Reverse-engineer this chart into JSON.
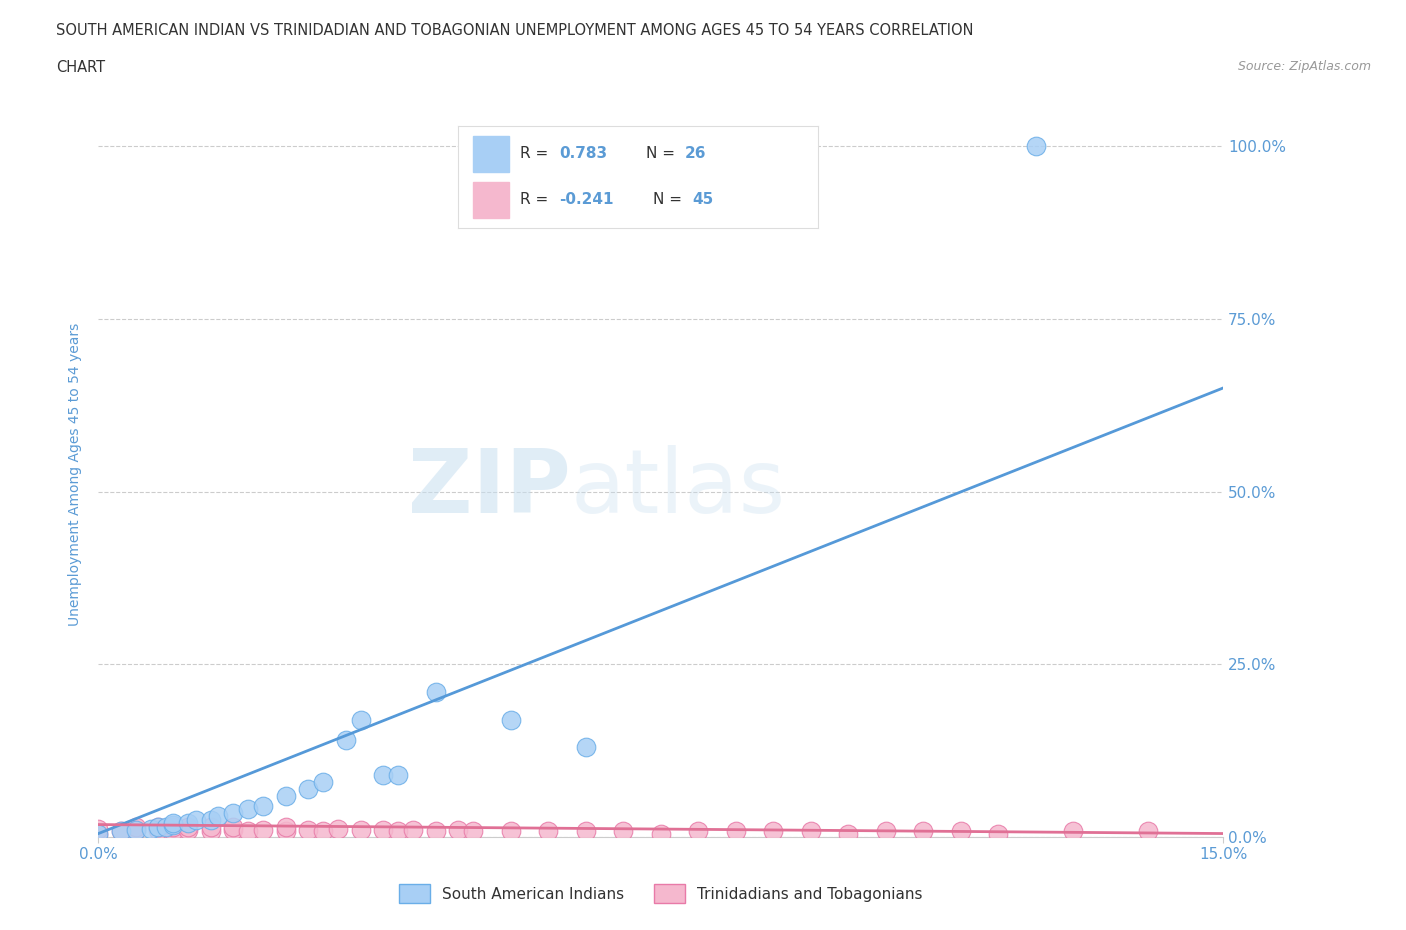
{
  "title_line1": "SOUTH AMERICAN INDIAN VS TRINIDADIAN AND TOBAGONIAN UNEMPLOYMENT AMONG AGES 45 TO 54 YEARS CORRELATION",
  "title_line2": "CHART",
  "source": "Source: ZipAtlas.com",
  "ylabel": "Unemployment Among Ages 45 to 54 years",
  "xlim": [
    0.0,
    0.15
  ],
  "ylim": [
    0.0,
    1.05
  ],
  "yticks": [
    0.0,
    0.25,
    0.5,
    0.75,
    1.0
  ],
  "ytick_labels": [
    "0.0%",
    "25.0%",
    "50.0%",
    "75.0%",
    "100.0%"
  ],
  "xticks": [
    0.0,
    0.15
  ],
  "xtick_labels": [
    "0.0%",
    "15.0%"
  ],
  "legend_blue_r": "0.783",
  "legend_blue_n": "26",
  "legend_pink_r": "-0.241",
  "legend_pink_n": "45",
  "blue_label": "South American Indians",
  "pink_label": "Trinidadians and Tobagonians",
  "blue_color": "#a8cff5",
  "pink_color": "#f5b8ce",
  "blue_edge_color": "#6aaee8",
  "pink_edge_color": "#e87aa8",
  "blue_line_color": "#5599d8",
  "pink_line_color": "#e07095",
  "watermark_zip": "ZIP",
  "watermark_atlas": "atlas",
  "blue_scatter_x": [
    0.0,
    0.003,
    0.005,
    0.007,
    0.008,
    0.009,
    0.01,
    0.01,
    0.012,
    0.013,
    0.015,
    0.016,
    0.018,
    0.02,
    0.022,
    0.025,
    0.028,
    0.03,
    0.033,
    0.035,
    0.038,
    0.04,
    0.045,
    0.055,
    0.065,
    0.125
  ],
  "blue_scatter_y": [
    0.005,
    0.008,
    0.01,
    0.012,
    0.015,
    0.015,
    0.018,
    0.02,
    0.02,
    0.025,
    0.025,
    0.03,
    0.035,
    0.04,
    0.045,
    0.06,
    0.07,
    0.08,
    0.14,
    0.17,
    0.09,
    0.09,
    0.21,
    0.17,
    0.13,
    1.0
  ],
  "pink_scatter_x": [
    0.0,
    0.0,
    0.003,
    0.005,
    0.005,
    0.008,
    0.008,
    0.01,
    0.01,
    0.012,
    0.012,
    0.015,
    0.015,
    0.018,
    0.018,
    0.02,
    0.022,
    0.025,
    0.025,
    0.028,
    0.03,
    0.032,
    0.035,
    0.038,
    0.04,
    0.042,
    0.045,
    0.048,
    0.05,
    0.055,
    0.06,
    0.065,
    0.07,
    0.075,
    0.08,
    0.085,
    0.09,
    0.095,
    0.1,
    0.105,
    0.11,
    0.115,
    0.12,
    0.13,
    0.14
  ],
  "pink_scatter_y": [
    0.005,
    0.012,
    0.008,
    0.01,
    0.015,
    0.01,
    0.015,
    0.008,
    0.015,
    0.01,
    0.015,
    0.008,
    0.015,
    0.01,
    0.015,
    0.008,
    0.01,
    0.008,
    0.015,
    0.01,
    0.008,
    0.012,
    0.01,
    0.01,
    0.008,
    0.01,
    0.008,
    0.01,
    0.008,
    0.008,
    0.008,
    0.008,
    0.008,
    0.005,
    0.008,
    0.008,
    0.008,
    0.008,
    0.005,
    0.008,
    0.008,
    0.008,
    0.005,
    0.008,
    0.008
  ],
  "blue_trendline_x": [
    0.0,
    0.15
  ],
  "blue_trendline_y": [
    0.005,
    0.65
  ],
  "pink_trendline_x": [
    0.0,
    0.15
  ],
  "pink_trendline_y": [
    0.018,
    0.005
  ],
  "grid_color": "#cccccc",
  "background_color": "#ffffff",
  "title_color": "#333333",
  "axis_color": "#5b9bd5",
  "tick_label_color": "#5b9bd5",
  "legend_text_color_rn": "#333333",
  "legend_text_color_val": "#5b9bd5"
}
